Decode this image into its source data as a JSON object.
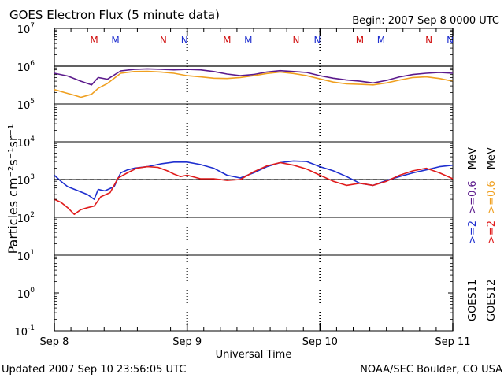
{
  "header": {
    "title": "GOES Electron Flux (5 minute data)",
    "begin": "Begin: 2007 Sep 8 0000 UTC"
  },
  "footer": {
    "updated": "Updated 2007 Sep 10 23:56:05 UTC",
    "source": "NOAA/SEC Boulder, CO USA"
  },
  "colors": {
    "goes11_gt2": "#1f2fcf",
    "goes11_gt06": "#5b1a8c",
    "goes12_gt2": "#e01c1c",
    "goes12_gt06": "#f0a020",
    "marker_M": "#d01010",
    "marker_N_red": "#d01010",
    "marker_N_blue": "#1f2fcf",
    "threshold_line": "#000000"
  },
  "chart_data": {
    "type": "line",
    "title": "GOES Electron Flux (5 minute data)",
    "xlabel": "Universal Time",
    "ylabel": "Particles cm⁻²s⁻¹sr⁻¹",
    "x_tick_labels": [
      "Sep 8",
      "Sep 9",
      "Sep 10",
      "Sep 11"
    ],
    "y_tick_labels": [
      {
        "base": "10",
        "exp": "7"
      },
      {
        "base": "10",
        "exp": "6"
      },
      {
        "base": "10",
        "exp": "5"
      },
      {
        "base": "10",
        "exp": "4"
      },
      {
        "base": "10",
        "exp": "3"
      },
      {
        "base": "10",
        "exp": "2"
      },
      {
        "base": "10",
        "exp": "1"
      },
      {
        "base": "10",
        "exp": "0"
      },
      {
        "base": "10",
        "exp": "-1"
      }
    ],
    "y_log_range": [
      -1,
      7
    ],
    "x_range_days": [
      0,
      3
    ],
    "log_scale": true,
    "grid": "horizontal lines at decades 10^1–10^6",
    "threshold_lines": [
      {
        "value": 1000000,
        "style": "solid"
      },
      {
        "value": 1000,
        "style": "dashed"
      }
    ],
    "legend": {
      "placement": "right",
      "energy_labels": [
        {
          "text": ">=2",
          "color": "#1f2fcf"
        },
        {
          "text": ">=0.6",
          "color": "#5b1a8c"
        },
        {
          "text": "MeV",
          "color": "#000000"
        },
        {
          "text": ">=2",
          "color": "#e01c1c"
        },
        {
          "text": ">=0.6",
          "color": "#f0a020"
        },
        {
          "text": "MeV",
          "color": "#000000"
        }
      ],
      "satellites": [
        "GOES11",
        "GOES12"
      ]
    },
    "markers": [
      {
        "label": "M",
        "x": 0.3,
        "color": "#d01010"
      },
      {
        "label": "M",
        "x": 0.46,
        "color": "#1f2fcf"
      },
      {
        "label": "N",
        "x": 0.82,
        "color": "#d01010"
      },
      {
        "label": "N",
        "x": 0.98,
        "color": "#1f2fcf"
      },
      {
        "label": "M",
        "x": 1.3,
        "color": "#d01010"
      },
      {
        "label": "M",
        "x": 1.46,
        "color": "#1f2fcf"
      },
      {
        "label": "N",
        "x": 1.82,
        "color": "#d01010"
      },
      {
        "label": "N",
        "x": 1.98,
        "color": "#1f2fcf"
      },
      {
        "label": "M",
        "x": 2.3,
        "color": "#d01010"
      },
      {
        "label": "M",
        "x": 2.46,
        "color": "#1f2fcf"
      },
      {
        "label": "N",
        "x": 2.82,
        "color": "#d01010"
      },
      {
        "label": "N",
        "x": 2.98,
        "color": "#1f2fcf"
      }
    ],
    "series": [
      {
        "name": "GOES11 >=2 MeV",
        "color": "#1f2fcf",
        "x": [
          0,
          0.05,
          0.1,
          0.18,
          0.25,
          0.3,
          0.33,
          0.38,
          0.45,
          0.5,
          0.55,
          0.6,
          0.7,
          0.8,
          0.9,
          1.0,
          1.1,
          1.2,
          1.3,
          1.4,
          1.5,
          1.6,
          1.7,
          1.8,
          1.9,
          2.0,
          2.1,
          2.2,
          2.3,
          2.4,
          2.5,
          2.6,
          2.7,
          2.8,
          2.9,
          3.0
        ],
        "y": [
          1300,
          900,
          650,
          500,
          400,
          300,
          550,
          500,
          650,
          1500,
          1800,
          2000,
          2200,
          2600,
          2900,
          2900,
          2500,
          2000,
          1300,
          1100,
          1500,
          2200,
          2800,
          3100,
          3000,
          2200,
          1700,
          1200,
          800,
          700,
          950,
          1200,
          1500,
          1800,
          2200,
          2400
        ]
      },
      {
        "name": "GOES11 >=0.6 MeV",
        "color": "#5b1a8c",
        "x": [
          0,
          0.1,
          0.2,
          0.28,
          0.33,
          0.4,
          0.5,
          0.6,
          0.7,
          0.8,
          0.9,
          1.0,
          1.1,
          1.2,
          1.3,
          1.4,
          1.5,
          1.6,
          1.7,
          1.8,
          1.9,
          2.0,
          2.1,
          2.2,
          2.3,
          2.4,
          2.5,
          2.6,
          2.7,
          2.8,
          2.9,
          3.0
        ],
        "y": [
          650000,
          550000,
          400000,
          320000,
          500000,
          450000,
          750000,
          820000,
          850000,
          830000,
          800000,
          820000,
          800000,
          720000,
          620000,
          560000,
          600000,
          700000,
          760000,
          720000,
          680000,
          560000,
          480000,
          430000,
          400000,
          360000,
          420000,
          520000,
          600000,
          650000,
          680000,
          650000
        ]
      },
      {
        "name": "GOES12 >=2 MeV",
        "color": "#e01c1c",
        "x": [
          0,
          0.05,
          0.1,
          0.15,
          0.2,
          0.25,
          0.3,
          0.35,
          0.42,
          0.48,
          0.55,
          0.62,
          0.7,
          0.78,
          0.85,
          0.9,
          0.95,
          1.0,
          1.1,
          1.2,
          1.3,
          1.4,
          1.5,
          1.6,
          1.7,
          1.8,
          1.9,
          2.0,
          2.1,
          2.2,
          2.3,
          2.4,
          2.5,
          2.6,
          2.7,
          2.8,
          2.9,
          3.0
        ],
        "y": [
          300,
          250,
          180,
          120,
          160,
          180,
          200,
          350,
          450,
          1100,
          1500,
          2000,
          2200,
          2100,
          1700,
          1400,
          1200,
          1300,
          1050,
          1050,
          950,
          1000,
          1600,
          2300,
          2800,
          2400,
          1900,
          1300,
          900,
          700,
          800,
          700,
          900,
          1300,
          1700,
          2000,
          1500,
          1050
        ]
      },
      {
        "name": "GOES12 >=0.6 MeV",
        "color": "#f0a020",
        "x": [
          0,
          0.08,
          0.15,
          0.2,
          0.28,
          0.33,
          0.4,
          0.5,
          0.6,
          0.7,
          0.8,
          0.9,
          1.0,
          1.1,
          1.2,
          1.3,
          1.4,
          1.5,
          1.6,
          1.7,
          1.8,
          1.9,
          2.0,
          2.1,
          2.2,
          2.3,
          2.4,
          2.5,
          2.6,
          2.7,
          2.8,
          2.9,
          3.0
        ],
        "y": [
          240000,
          200000,
          170000,
          150000,
          180000,
          260000,
          350000,
          650000,
          720000,
          730000,
          700000,
          650000,
          560000,
          520000,
          480000,
          470000,
          500000,
          560000,
          640000,
          700000,
          640000,
          560000,
          460000,
          380000,
          340000,
          330000,
          320000,
          360000,
          430000,
          500000,
          520000,
          470000,
          400000
        ]
      }
    ]
  }
}
